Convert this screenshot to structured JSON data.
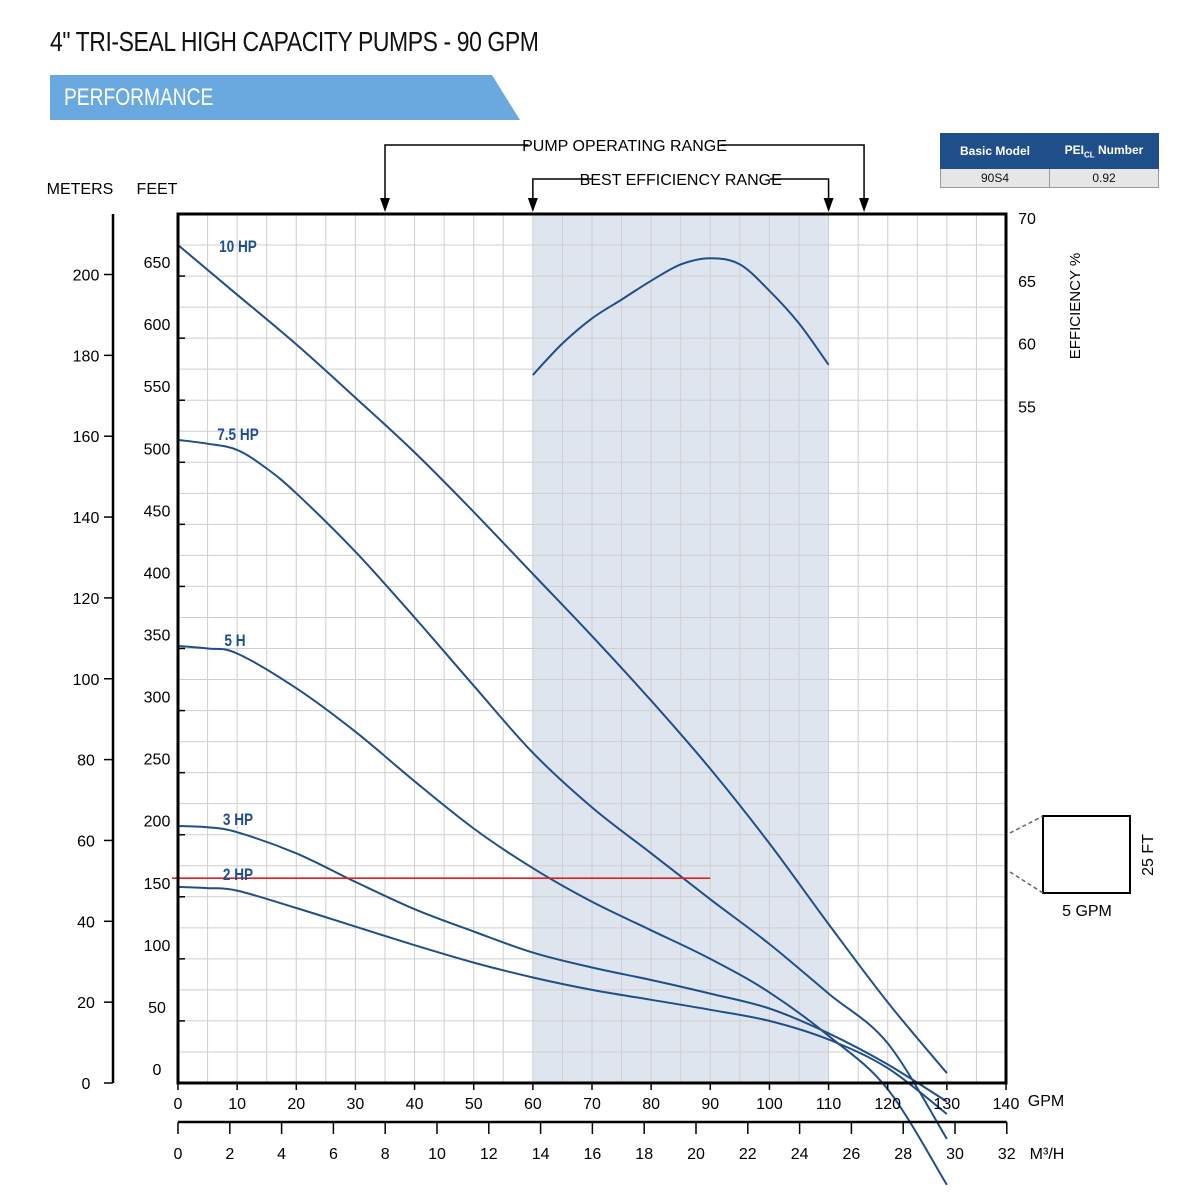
{
  "title": "4\" TRI-SEAL HIGH CAPACITY PUMPS - 90 GPM",
  "section": "PERFORMANCE",
  "pei_table": {
    "headers": [
      "Basic Model",
      "PEI",
      "Number"
    ],
    "header_sub": "CL",
    "values": [
      "90S4",
      "0.92"
    ]
  },
  "ranges": {
    "pump_operating_range": {
      "label": "PUMP OPERATING RANGE",
      "from_gpm": 35,
      "to_gpm": 116
    },
    "best_efficiency_range": {
      "label": "BEST EFFICIENCY RANGE",
      "from_gpm": 60,
      "to_gpm": 110
    }
  },
  "scale_box": {
    "width_label": "5 GPM",
    "height_label": "25 FT"
  },
  "colors": {
    "curve": "#1f4f8a",
    "label": "#1f4f8a",
    "shade": "#dfe5ee",
    "grid": "#cfcfcf",
    "duty_line": "#e02020"
  },
  "chart_data": {
    "type": "line",
    "xlabel": "GPM",
    "ylabel_left_feet": "FEET",
    "ylabel_left_meters": "METERS",
    "ylabel_right": "EFFICIENCY %",
    "x2label": "M³/H",
    "xlim": [
      0,
      140
    ],
    "ylim": [
      0,
      700
    ],
    "y_eff_lim": [
      0,
      70
    ],
    "x_ticks": [
      0,
      10,
      20,
      30,
      40,
      50,
      60,
      70,
      80,
      90,
      100,
      110,
      120,
      130,
      140
    ],
    "feet_ticks": [
      0,
      50,
      100,
      150,
      200,
      250,
      300,
      350,
      400,
      450,
      500,
      550,
      600,
      650
    ],
    "meters_ticks": [
      0,
      20,
      40,
      60,
      80,
      100,
      120,
      140,
      160,
      180,
      200
    ],
    "m3h_ticks": [
      0,
      2,
      4,
      6,
      8,
      10,
      12,
      14,
      16,
      18,
      20,
      22,
      24,
      26,
      28,
      30,
      32
    ],
    "eff_ticks": [
      55,
      60,
      65,
      70
    ],
    "series": [
      {
        "name": "10 HP",
        "x": [
          0,
          10,
          20,
          30,
          40,
          50,
          60,
          70,
          80,
          90,
          100,
          110,
          120,
          130
        ],
        "y": [
          675,
          635,
          595,
          552,
          508,
          460,
          410,
          360,
          308,
          253,
          193,
          128,
          65,
          8
        ]
      },
      {
        "name": "7.5 HP",
        "x": [
          0,
          5,
          10,
          15,
          20,
          30,
          40,
          50,
          60,
          70,
          80,
          90,
          100,
          110,
          120,
          130
        ],
        "y": [
          518,
          515,
          510,
          495,
          475,
          428,
          375,
          320,
          266,
          222,
          185,
          148,
          112,
          72,
          32,
          -45
        ]
      },
      {
        "name": "5 H",
        "x": [
          0,
          5,
          10,
          20,
          30,
          40,
          50,
          60,
          70,
          80,
          90,
          100,
          110,
          120,
          130
        ],
        "y": [
          352,
          350,
          346,
          318,
          283,
          243,
          205,
          173,
          146,
          123,
          100,
          73,
          38,
          -5,
          -82
        ]
      },
      {
        "name": "3 HP",
        "x": [
          0,
          5,
          10,
          20,
          30,
          40,
          50,
          60,
          70,
          80,
          90,
          100,
          110,
          120,
          130
        ],
        "y": [
          207,
          206,
          202,
          185,
          162,
          140,
          122,
          105,
          93,
          83,
          72,
          60,
          40,
          15,
          -15
        ]
      },
      {
        "name": "2 HP",
        "x": [
          0,
          5,
          10,
          20,
          30,
          40,
          50,
          60,
          70,
          80,
          90,
          100,
          110,
          120,
          130
        ],
        "y": [
          158,
          157,
          155,
          141,
          126,
          111,
          97,
          85,
          75,
          67,
          59,
          50,
          35,
          12,
          -25
        ]
      }
    ],
    "efficiency": {
      "x": [
        60,
        65,
        70,
        75,
        80,
        85,
        90,
        95,
        100,
        105,
        110
      ],
      "y": [
        57.5,
        60,
        62,
        63.5,
        65,
        66.3,
        66.8,
        66.3,
        64.2,
        61.6,
        58.3
      ]
    },
    "duty_line": {
      "head_ft": 165,
      "from_gpm": 0,
      "to_gpm": 90
    },
    "grid": true
  }
}
